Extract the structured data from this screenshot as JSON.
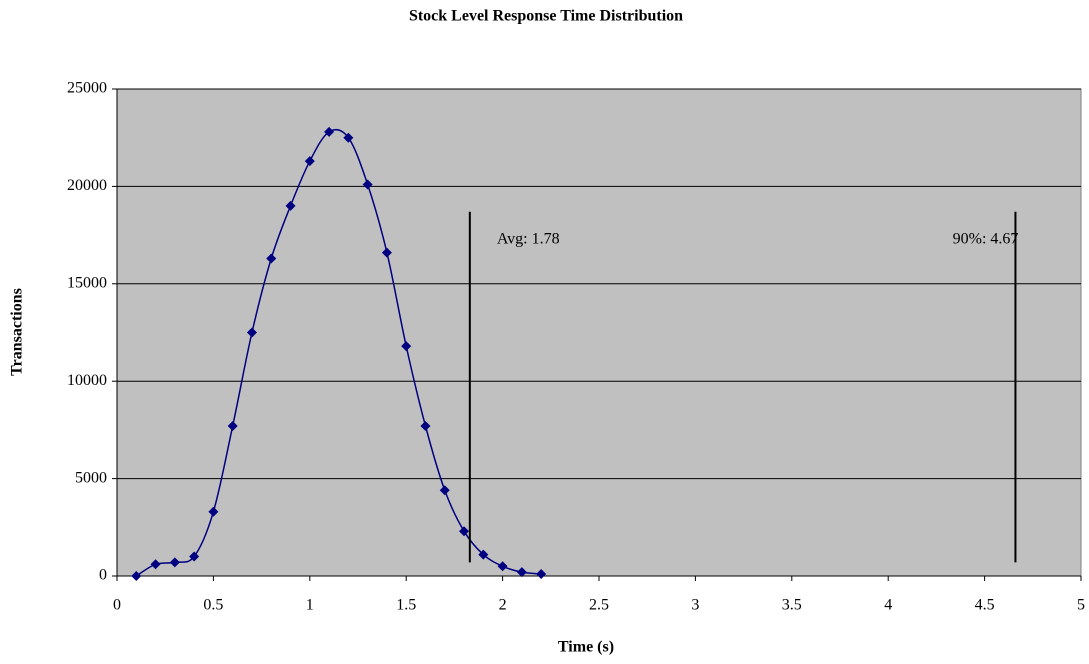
{
  "chart_data": {
    "type": "line",
    "title": "Stock Level Response Time Distribution",
    "x_label": "Time (s)",
    "y_label": "Transactions",
    "x": [
      0.1,
      0.2,
      0.3,
      0.4,
      0.5,
      0.6,
      0.7,
      0.8,
      0.9,
      1.0,
      1.1,
      1.2,
      1.3,
      1.4,
      1.5,
      1.6,
      1.7,
      1.8,
      1.9,
      2.0,
      2.1,
      2.2
    ],
    "series": [
      {
        "color": "#000080",
        "values": [
          0,
          600,
          700,
          1000,
          3300,
          7700,
          12500,
          16300,
          19000,
          21300,
          22800,
          22500,
          20100,
          16600,
          11800,
          7700,
          4400,
          2300,
          1100,
          500,
          200,
          100
        ]
      }
    ],
    "xlim": [
      0,
      5
    ],
    "xticks": [
      0,
      0.5,
      1,
      1.5,
      2,
      2.5,
      3,
      3.5,
      4,
      4.5,
      5
    ],
    "ylim": [
      0,
      25000
    ],
    "yticks": [
      0,
      5000,
      10000,
      15000,
      20000,
      25000
    ],
    "grid": true,
    "plot_background": "#c0c0c0",
    "annotations": [
      {
        "text": "Avg: 1.78",
        "x": 1.83,
        "y_range": [
          700,
          18700
        ]
      },
      {
        "text": "90%: 4.67",
        "x": 4.66,
        "y_range": [
          700,
          18700
        ]
      }
    ]
  }
}
